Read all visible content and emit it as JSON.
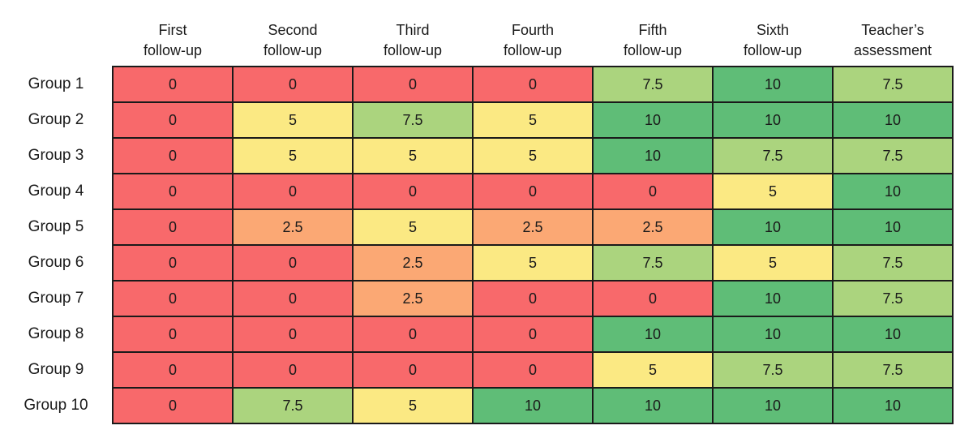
{
  "chart_data": {
    "type": "heatmap",
    "title": "",
    "xlabel": "",
    "ylabel": "",
    "value_range": [
      0,
      10
    ],
    "grid": true,
    "border_color": "#1a1a1a",
    "value_colors": {
      "0": "#F8696B",
      "2.5": "#FBA874",
      "5": "#FBE983",
      "7.5": "#ABD47E",
      "10": "#5FBD77"
    },
    "columns": [
      {
        "line1": "First",
        "line2": "follow-up"
      },
      {
        "line1": "Second",
        "line2": "follow-up"
      },
      {
        "line1": "Third",
        "line2": "follow-up"
      },
      {
        "line1": "Fourth",
        "line2": "follow-up"
      },
      {
        "line1": "Fifth",
        "line2": "follow-up"
      },
      {
        "line1": "Sixth",
        "line2": "follow-up"
      },
      {
        "line1": "Teacher’s",
        "line2": "assessment"
      }
    ],
    "rows": [
      {
        "label": "Group 1",
        "values": [
          "0",
          "0",
          "0",
          "0",
          "7.5",
          "10",
          "7.5"
        ]
      },
      {
        "label": "Group 2",
        "values": [
          "0",
          "5",
          "7.5",
          "5",
          "10",
          "10",
          "10"
        ]
      },
      {
        "label": "Group 3",
        "values": [
          "0",
          "5",
          "5",
          "5",
          "10",
          "7.5",
          "7.5"
        ]
      },
      {
        "label": "Group 4",
        "values": [
          "0",
          "0",
          "0",
          "0",
          "0",
          "5",
          "10"
        ]
      },
      {
        "label": "Group 5",
        "values": [
          "0",
          "2.5",
          "5",
          "2.5",
          "2.5",
          "10",
          "10"
        ]
      },
      {
        "label": "Group 6",
        "values": [
          "0",
          "0",
          "2.5",
          "5",
          "7.5",
          "5",
          "7.5"
        ]
      },
      {
        "label": "Group 7",
        "values": [
          "0",
          "0",
          "2.5",
          "0",
          "0",
          "10",
          "7.5"
        ]
      },
      {
        "label": "Group 8",
        "values": [
          "0",
          "0",
          "0",
          "0",
          "10",
          "10",
          "10"
        ]
      },
      {
        "label": "Group 9",
        "values": [
          "0",
          "0",
          "0",
          "0",
          "5",
          "7.5",
          "7.5"
        ]
      },
      {
        "label": "Group 10",
        "values": [
          "0",
          "7.5",
          "5",
          "10",
          "10",
          "10",
          "10"
        ]
      }
    ]
  }
}
